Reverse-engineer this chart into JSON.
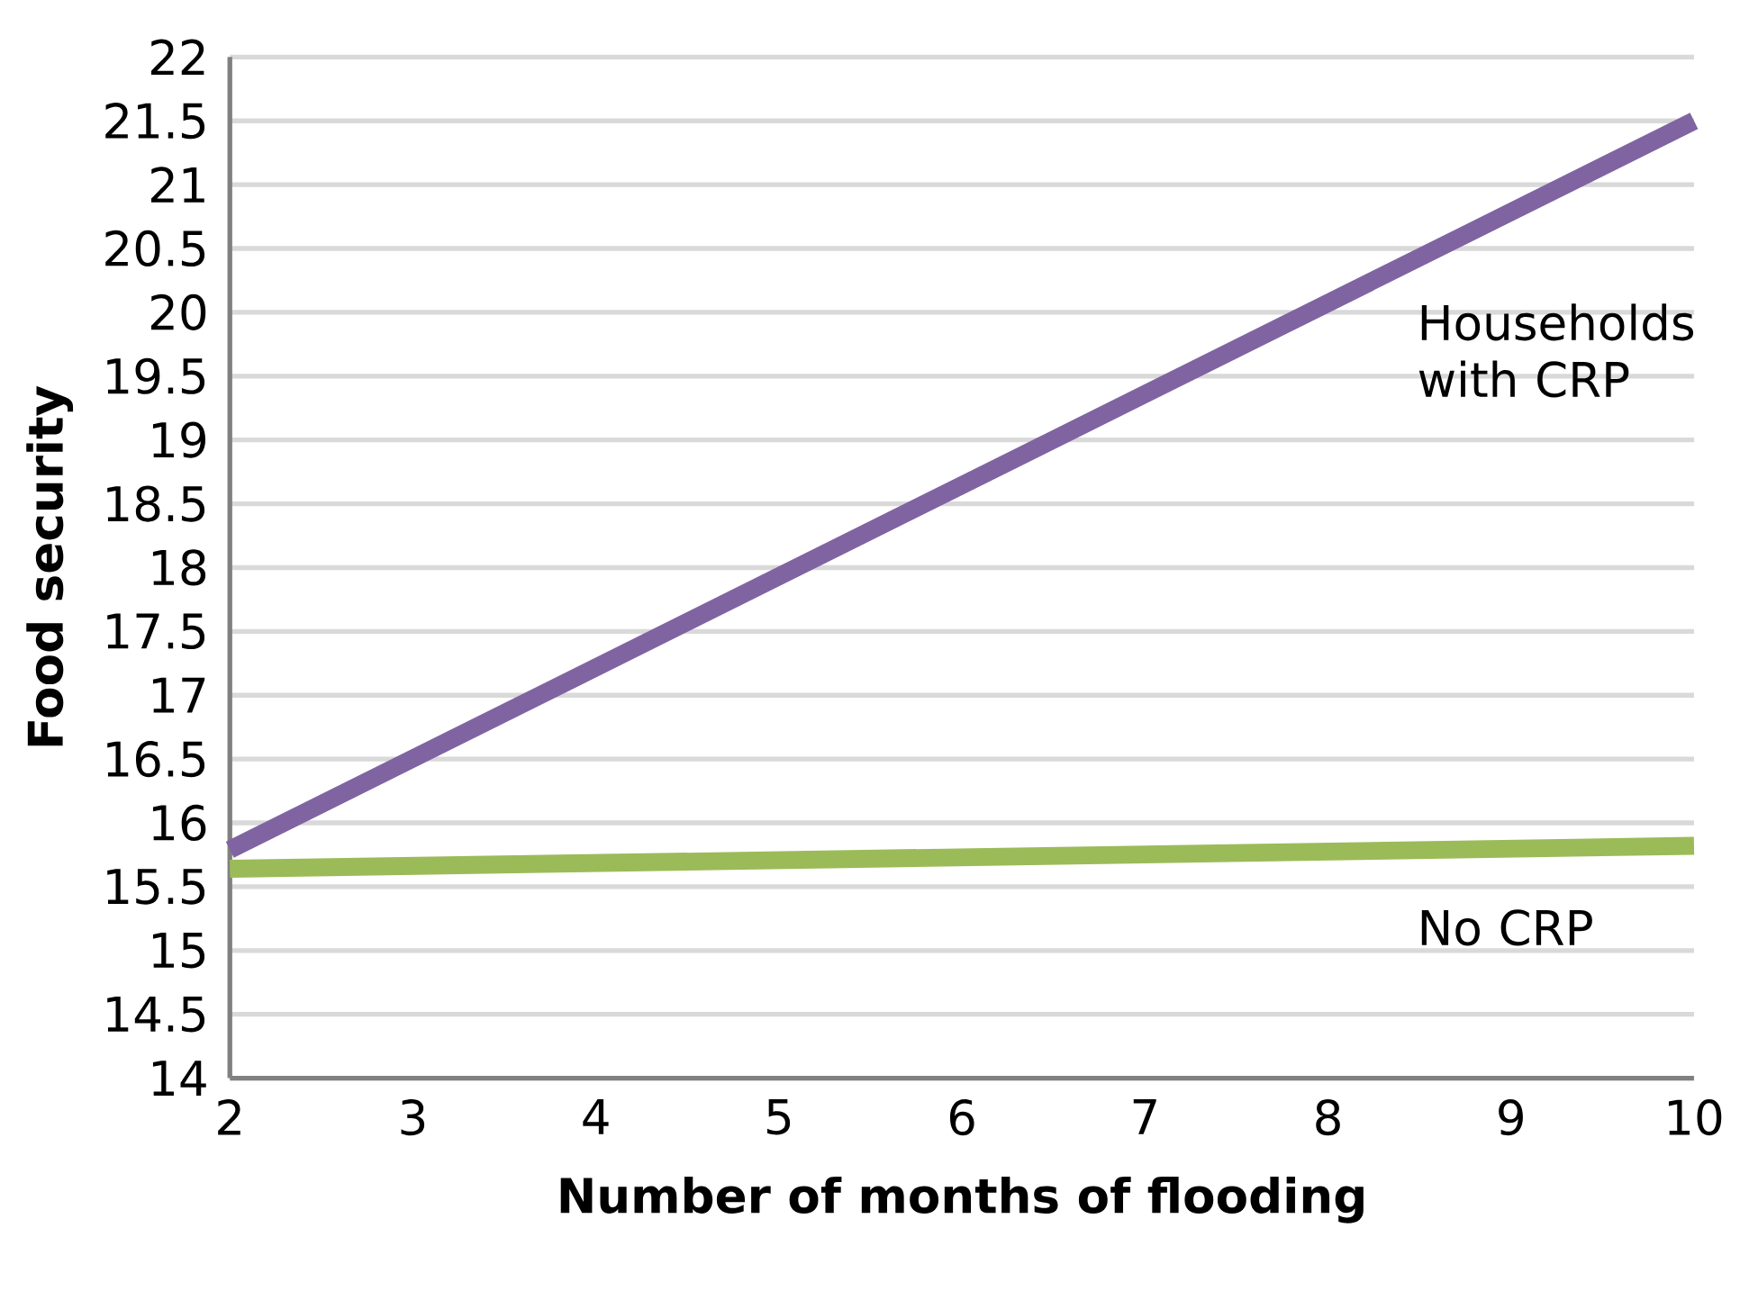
{
  "chart_data": {
    "type": "line",
    "xlabel": "Number of months of flooding",
    "ylabel": "Food security",
    "x": [
      2,
      10
    ],
    "series": [
      {
        "name": "Households with CRP",
        "color": "#8064a2",
        "values": [
          15.79,
          21.5
        ]
      },
      {
        "name": "No CRP",
        "color": "#9bbb59",
        "values": [
          15.64,
          15.82
        ]
      }
    ],
    "xlim": [
      2,
      10
    ],
    "xticks": [
      2,
      3,
      4,
      5,
      6,
      7,
      8,
      9,
      10
    ],
    "ylim": [
      14,
      22
    ],
    "yticks": [
      14,
      14.5,
      15,
      15.5,
      16,
      16.5,
      17,
      17.5,
      18,
      18.5,
      19,
      19.5,
      20,
      20.5,
      21,
      21.5,
      22
    ],
    "grid": "y",
    "marker": "none",
    "line_style": "solid",
    "legend": false
  }
}
